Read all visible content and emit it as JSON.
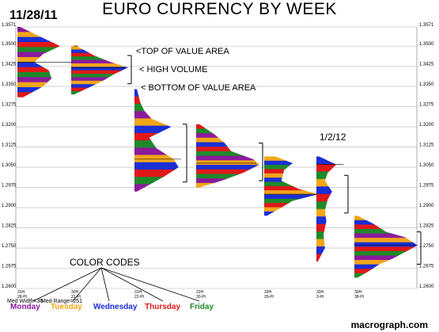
{
  "chart_data": {
    "type": "market-profile",
    "title": "EURO CURRENCY BY WEEK",
    "start_date_label": "11/28/11",
    "end_date_label": "1/2/12",
    "ylim": [
      1.26,
      1.3571
    ],
    "y_ticks": [
      "1.3571",
      "1.3500",
      "1.3425",
      "1.3350",
      "1.3275",
      "1.3200",
      "1.3125",
      "1.3050",
      "1.2975",
      "1.2900",
      "1.2825",
      "1.2750",
      "1.2675",
      "1.2600"
    ],
    "grid": true,
    "colors": {
      "Monday": "#8b1a9c",
      "Tuesday": "#f2a51a",
      "Wednesday": "#1a2fd6",
      "Thursday": "#e01818",
      "Friday": "#1f8a2a"
    },
    "legend": [
      {
        "name": "Monday",
        "color": "#8b1a9c"
      },
      {
        "name": "Tuesday",
        "color": "#f2a51a"
      },
      {
        "name": "Wednesday",
        "color": "#1a2fd6"
      },
      {
        "name": "Thursday",
        "color": "#e01818"
      },
      {
        "name": "Friday",
        "color": "#1f8a2a"
      }
    ],
    "color_codes_label": "COLOR CODES",
    "annotations": [
      "<TOP OF VALUE AREA",
      "< HIGH VOLUME",
      "< BOTTOM OF VALUE AREA"
    ],
    "median_width_label": "Med Width=36",
    "median_range_label": "Med Range=251",
    "brand": "macrograph.com",
    "weeks": [
      {
        "high": 1.3571,
        "low": 1.331,
        "value_area": [
          1.35,
          1.335
        ],
        "poc": 1.344,
        "profile": [
          [
            1.3571,
            0.05
          ],
          [
            1.354,
            0.35
          ],
          [
            1.35,
            0.75
          ],
          [
            1.347,
            0.45
          ],
          [
            1.344,
            0.3
          ],
          [
            1.341,
            0.55
          ],
          [
            1.338,
            0.6
          ],
          [
            1.335,
            0.45
          ],
          [
            1.331,
            0.1
          ]
        ],
        "colors": [
          "Monday",
          "Tuesday",
          "Wednesday",
          "Thursday",
          "Friday"
        ]
      },
      {
        "high": 1.35,
        "low": 1.332,
        "value_area": [
          1.3465,
          1.336
        ],
        "poc": 1.342,
        "profile": [
          [
            1.35,
            0.1
          ],
          [
            1.3465,
            0.4
          ],
          [
            1.344,
            0.7
          ],
          [
            1.342,
            1.0
          ],
          [
            1.3395,
            0.75
          ],
          [
            1.337,
            0.55
          ],
          [
            1.334,
            0.25
          ],
          [
            1.332,
            0.05
          ]
        ],
        "colors": [
          "Monday",
          "Tuesday",
          "Wednesday",
          "Thursday",
          "Friday"
        ]
      },
      {
        "high": 1.334,
        "low": 1.296,
        "value_area": [
          1.321,
          1.2995
        ],
        "poc": 1.308,
        "profile": [
          [
            1.334,
            0.05
          ],
          [
            1.329,
            0.12
          ],
          [
            1.326,
            0.2
          ],
          [
            1.323,
            0.35
          ],
          [
            1.32,
            0.75
          ],
          [
            1.316,
            0.3
          ],
          [
            1.312,
            0.45
          ],
          [
            1.308,
            0.8
          ],
          [
            1.305,
            0.9
          ],
          [
            1.3015,
            0.6
          ],
          [
            1.2985,
            0.3
          ],
          [
            1.296,
            0.05
          ]
        ],
        "colors": [
          "Monday",
          "Tuesday",
          "Wednesday",
          "Thursday",
          "Friday"
        ]
      },
      {
        "high": 1.321,
        "low": 1.2975,
        "value_area": [
          1.314,
          1.3
        ],
        "poc": 1.3065,
        "profile": [
          [
            1.321,
            0.05
          ],
          [
            1.317,
            0.3
          ],
          [
            1.314,
            0.45
          ],
          [
            1.311,
            0.55
          ],
          [
            1.308,
            0.9
          ],
          [
            1.306,
            1.0
          ],
          [
            1.303,
            0.75
          ],
          [
            1.3,
            0.4
          ],
          [
            1.2975,
            0.05
          ]
        ],
        "colors": [
          "Monday",
          "Tuesday",
          "Wednesday",
          "Thursday",
          "Friday"
        ]
      },
      {
        "high": 1.309,
        "low": 1.287,
        "value_area": [
          1.304,
          1.2905
        ],
        "poc": 1.295,
        "profile": [
          [
            1.309,
            0.2
          ],
          [
            1.3065,
            0.5
          ],
          [
            1.304,
            0.35
          ],
          [
            1.3,
            0.3
          ],
          [
            1.297,
            0.6
          ],
          [
            1.295,
            0.95
          ],
          [
            1.2925,
            0.5
          ],
          [
            1.29,
            0.3
          ],
          [
            1.287,
            0.05
          ]
        ],
        "colors": [
          "Tuesday",
          "Wednesday",
          "Friday",
          "Thursday"
        ]
      },
      {
        "high": 1.309,
        "low": 1.27,
        "value_area": [
          1.302,
          1.288
        ],
        "poc": 1.306,
        "profile": [
          [
            1.309,
            0.1
          ],
          [
            1.306,
            0.7
          ],
          [
            1.303,
            0.4
          ],
          [
            1.3,
            0.3
          ],
          [
            1.296,
            0.55
          ],
          [
            1.293,
            0.4
          ],
          [
            1.289,
            0.3
          ],
          [
            1.285,
            0.35
          ],
          [
            1.28,
            0.25
          ],
          [
            1.275,
            0.3
          ],
          [
            1.27,
            0.05
          ]
        ],
        "colors": [
          "Tuesday",
          "Wednesday",
          "Thursday",
          "Friday"
        ]
      },
      {
        "high": 1.287,
        "low": 1.264,
        "value_area": [
          1.281,
          1.269
        ],
        "poc": 1.276,
        "profile": [
          [
            1.287,
            0.05
          ],
          [
            1.284,
            0.3
          ],
          [
            1.281,
            0.5
          ],
          [
            1.279,
            0.8
          ],
          [
            1.276,
            1.0
          ],
          [
            1.2735,
            0.8
          ],
          [
            1.271,
            0.6
          ],
          [
            1.269,
            0.4
          ],
          [
            1.266,
            0.2
          ],
          [
            1.264,
            0.05
          ]
        ],
        "colors": [
          "Monday",
          "Tuesday",
          "Wednesday",
          "Thursday",
          "Friday"
        ]
      }
    ],
    "x_tick_labels": [
      [
        "31H",
        "28-Pt"
      ],
      [
        "30H",
        "22-Pt"
      ],
      [
        "31H",
        "22-Pt"
      ],
      [
        "22H",
        "30-Pt"
      ],
      [
        "33H",
        "29-Pt"
      ],
      [
        "33H",
        "3-Pt"
      ],
      [
        "30H",
        "38-Pt"
      ]
    ]
  }
}
